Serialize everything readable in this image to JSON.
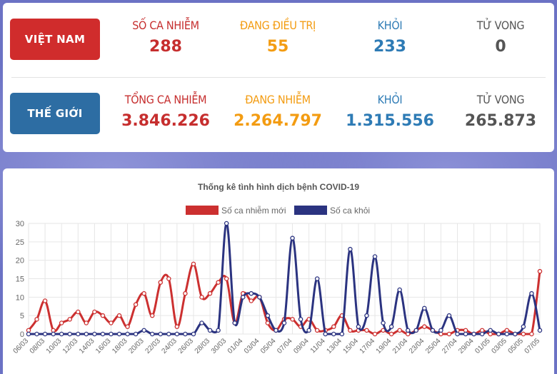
{
  "vietnam": {
    "label": "VIỆT NAM",
    "stats": [
      {
        "label": "SỐ CA NHIỄM",
        "value": "288"
      },
      {
        "label": "ĐANG ĐIỀU TRỊ",
        "value": "55"
      },
      {
        "label": "KHỎI",
        "value": "233"
      },
      {
        "label": "TỬ VONG",
        "value": "0"
      }
    ]
  },
  "world": {
    "label": "THẾ GIỚI",
    "stats": [
      {
        "label": "TỔNG CA NHIỄM",
        "value": "3.846.226"
      },
      {
        "label": "ĐANG NHIỄM",
        "value": "2.264.797"
      },
      {
        "label": "KHỎI",
        "value": "1.315.556"
      },
      {
        "label": "TỬ VONG",
        "value": "265.873"
      }
    ]
  },
  "colors": {
    "red": "#c62e2e",
    "orange": "#f39c12",
    "blue": "#2e7bb5",
    "gray": "#555555",
    "series_new": "#cc3030",
    "series_recovered": "#2b3380"
  },
  "chart_data": {
    "type": "line",
    "title": "Thống kê tình hình dịch bệnh COVID-19",
    "xlabel": "",
    "ylabel": "",
    "ylim": [
      0,
      30
    ],
    "yticks": [
      0,
      5,
      10,
      15,
      20,
      25,
      30
    ],
    "legend_position": "top-center",
    "x": [
      "06/03",
      "07/03",
      "08/03",
      "09/03",
      "10/03",
      "11/03",
      "12/03",
      "13/03",
      "14/03",
      "15/03",
      "16/03",
      "17/03",
      "18/03",
      "19/03",
      "20/03",
      "21/03",
      "22/03",
      "23/03",
      "24/03",
      "25/03",
      "26/03",
      "27/03",
      "28/03",
      "29/03",
      "30/03",
      "31/03",
      "01/04",
      "02/04",
      "03/04",
      "04/04",
      "05/04",
      "06/04",
      "07/04",
      "08/04",
      "09/04",
      "10/04",
      "11/04",
      "12/04",
      "13/04",
      "14/04",
      "15/04",
      "16/04",
      "17/04",
      "18/04",
      "19/04",
      "20/04",
      "21/04",
      "22/04",
      "23/04",
      "24/04",
      "25/04",
      "26/04",
      "27/04",
      "28/04",
      "29/04",
      "30/04",
      "01/05",
      "02/05",
      "03/05",
      "04/05",
      "05/05",
      "06/05",
      "07/05"
    ],
    "x_tick_labels": [
      "06/03",
      "08/03",
      "10/03",
      "12/03",
      "14/03",
      "16/03",
      "18/03",
      "20/03",
      "22/03",
      "24/03",
      "26/03",
      "28/03",
      "30/03",
      "01/04",
      "03/04",
      "05/04",
      "07/04",
      "09/04",
      "11/04",
      "13/04",
      "15/04",
      "17/04",
      "19/04",
      "21/04",
      "23/04",
      "25/04",
      "27/04",
      "29/04",
      "01/05",
      "03/05",
      "05/05",
      "07/05"
    ],
    "series": [
      {
        "name": "Số ca nhiễm mới",
        "color": "#cc3030",
        "values": [
          1,
          4,
          9,
          1,
          3,
          4,
          6,
          3,
          6,
          5,
          3,
          5,
          2,
          8,
          11,
          5,
          14,
          15,
          2,
          11,
          19,
          10,
          11,
          14,
          15,
          3,
          11,
          9,
          10,
          3,
          1,
          4,
          4,
          2,
          4,
          1,
          1,
          2,
          5,
          1,
          1,
          1,
          0,
          1,
          0,
          1,
          0,
          1,
          2,
          1,
          0,
          0,
          1,
          1,
          0,
          1,
          0,
          0,
          1,
          0,
          0,
          0,
          17
        ]
      },
      {
        "name": "Số ca khỏi",
        "color": "#2b3380",
        "values": [
          0,
          0,
          0,
          0,
          0,
          0,
          0,
          0,
          0,
          0,
          0,
          0,
          0,
          0,
          1,
          0,
          0,
          0,
          0,
          0,
          0,
          3,
          1,
          1,
          30,
          3,
          10,
          11,
          10,
          5,
          1,
          3,
          26,
          4,
          1,
          15,
          0,
          0,
          0,
          23,
          2,
          5,
          21,
          3,
          2,
          12,
          1,
          1,
          7,
          1,
          1,
          5,
          0,
          0,
          0,
          0,
          1,
          0,
          0,
          0,
          2,
          11,
          1
        ]
      }
    ]
  }
}
